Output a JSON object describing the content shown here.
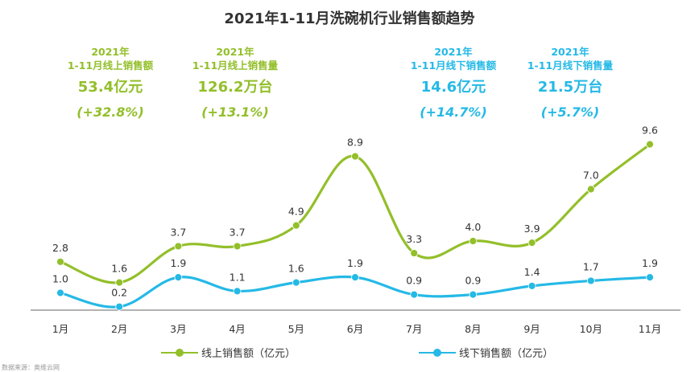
{
  "title": "2021年1-11月洗碗机行业销售额趋势",
  "kpis": [
    {
      "line1": "2021年",
      "line2": "1-11月线上销售额",
      "value": "53.4亿元",
      "change": "(+32.8%)",
      "kind": "online"
    },
    {
      "line1": "2021年",
      "line2": "1-11月线上销售量",
      "value": "126.2万台",
      "change": "(+13.1%)",
      "kind": "online"
    },
    {
      "line1": "2021年",
      "line2": "1-11月线下销售额",
      "value": "14.6亿元",
      "change": "(+14.7%)",
      "kind": "offline"
    },
    {
      "line1": "2021年",
      "line2": "1-11月线下销售量",
      "value": "21.5万台",
      "change": "(+5.7%)",
      "kind": "offline"
    }
  ],
  "colors": {
    "online": "#93bf2a",
    "offline": "#25b9e6",
    "axis": "#666666",
    "text": "#333333"
  },
  "legend": {
    "online": "线上销售额（亿元）",
    "offline": "线下销售额（亿元）"
  },
  "source": "数据来源：奥维云网",
  "chart_data": {
    "type": "line",
    "title": "2021年1-11月洗碗机行业销售额趋势",
    "categories": [
      "1月",
      "2月",
      "3月",
      "4月",
      "5月",
      "6月",
      "7月",
      "8月",
      "9月",
      "10月",
      "11月"
    ],
    "series": [
      {
        "name": "线上销售额（亿元）",
        "values": [
          2.8,
          1.6,
          3.7,
          3.7,
          4.9,
          8.9,
          3.3,
          4.0,
          3.9,
          7.0,
          9.6
        ],
        "labels": [
          "2.8",
          "1.6",
          "3.7",
          "3.7",
          "4.9",
          "8.9",
          "3.3",
          "4.0",
          "3.9",
          "7.0",
          "9.6"
        ]
      },
      {
        "name": "线下销售额（亿元）",
        "values": [
          1.0,
          0.2,
          1.9,
          1.1,
          1.6,
          1.9,
          0.9,
          0.9,
          1.4,
          1.7,
          1.9
        ],
        "labels": [
          "1.0",
          "0.2",
          "1.9",
          "1.1",
          "1.6",
          "1.9",
          "0.9",
          "0.9",
          "1.4",
          "1.7",
          "1.9"
        ]
      }
    ],
    "smooth": true,
    "legend_position": "bottom",
    "ylim": [
      0,
      10
    ],
    "grid": false
  }
}
